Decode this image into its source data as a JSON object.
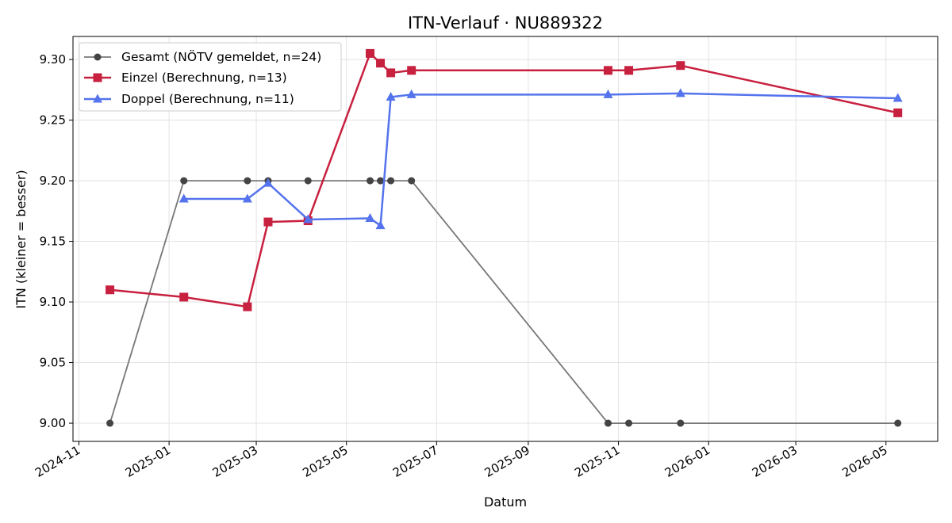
{
  "chart_data": {
    "type": "line",
    "title": "ITN-Verlauf · NU889322",
    "xlabel": "Datum",
    "ylabel": "ITN  (kleiner = besser)",
    "xlim": [
      "2024-10-28",
      "2026-06-05"
    ],
    "ylim": [
      8.985,
      9.319
    ],
    "x_ticks": [
      "2024-11",
      "2025-01",
      "2025-03",
      "2025-05",
      "2025-07",
      "2025-09",
      "2025-11",
      "2026-01",
      "2026-03",
      "2026-05"
    ],
    "y_ticks": [
      "9.00",
      "9.05",
      "9.10",
      "9.15",
      "9.20",
      "9.25",
      "9.30"
    ],
    "grid": true,
    "legend_position": "top-left",
    "series": [
      {
        "name": "Gesamt (NÖTV gemeldet, n=24)",
        "color": "#777777",
        "marker": "circle",
        "points": [
          {
            "x": "2024-11-22",
            "y": 9.0
          },
          {
            "x": "2025-01-11",
            "y": 9.2
          },
          {
            "x": "2025-02-23",
            "y": 9.2
          },
          {
            "x": "2025-03-09",
            "y": 9.2
          },
          {
            "x": "2025-04-05",
            "y": 9.2
          },
          {
            "x": "2025-05-17",
            "y": 9.2
          },
          {
            "x": "2025-05-24",
            "y": 9.2
          },
          {
            "x": "2025-05-31",
            "y": 9.2
          },
          {
            "x": "2025-06-14",
            "y": 9.2
          },
          {
            "x": "2025-10-25",
            "y": 9.0
          },
          {
            "x": "2025-11-08",
            "y": 9.0
          },
          {
            "x": "2025-12-13",
            "y": 9.0
          },
          {
            "x": "2026-05-09",
            "y": 9.0
          }
        ]
      },
      {
        "name": "Einzel (Berechnung, n=13)",
        "color": "#c8203f",
        "marker": "square",
        "points": [
          {
            "x": "2024-11-22",
            "y": 9.11
          },
          {
            "x": "2025-01-11",
            "y": 9.104
          },
          {
            "x": "2025-02-23",
            "y": 9.096
          },
          {
            "x": "2025-03-09",
            "y": 9.166
          },
          {
            "x": "2025-04-05",
            "y": 9.167
          },
          {
            "x": "2025-05-17",
            "y": 9.305
          },
          {
            "x": "2025-05-24",
            "y": 9.297
          },
          {
            "x": "2025-05-31",
            "y": 9.289
          },
          {
            "x": "2025-06-14",
            "y": 9.291
          },
          {
            "x": "2025-10-25",
            "y": 9.291
          },
          {
            "x": "2025-11-08",
            "y": 9.291
          },
          {
            "x": "2025-12-13",
            "y": 9.295
          },
          {
            "x": "2026-05-09",
            "y": 9.256
          }
        ]
      },
      {
        "name": "Doppel (Berechnung, n=11)",
        "color": "#5473ec",
        "marker": "triangle",
        "points": [
          {
            "x": "2025-01-11",
            "y": 9.185
          },
          {
            "x": "2025-02-23",
            "y": 9.185
          },
          {
            "x": "2025-03-09",
            "y": 9.198
          },
          {
            "x": "2025-04-05",
            "y": 9.168
          },
          {
            "x": "2025-05-17",
            "y": 9.169
          },
          {
            "x": "2025-05-24",
            "y": 9.163
          },
          {
            "x": "2025-05-31",
            "y": 9.269
          },
          {
            "x": "2025-06-14",
            "y": 9.271
          },
          {
            "x": "2025-10-25",
            "y": 9.271
          },
          {
            "x": "2025-12-13",
            "y": 9.272
          },
          {
            "x": "2026-05-09",
            "y": 9.268
          }
        ]
      }
    ]
  }
}
